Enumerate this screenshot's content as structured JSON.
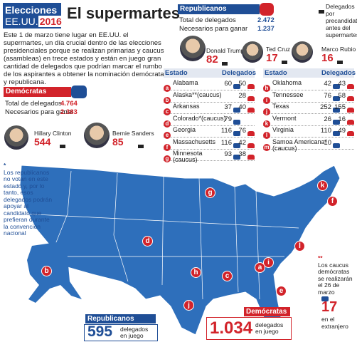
{
  "header": {
    "brand": "Elecciones",
    "country": "EE.UU.",
    "year": "2016",
    "title": "El supermartes"
  },
  "intro": "Este 1 de marzo tiene lugar en EE.UU. el supermartes, un día crucial dentro de las elecciones presidenciales porque se realizan primarias y caucus (asambleas) en trece estados y están en juego gran cantidad de delegados que podrían marcar el rumbo de los aspirantes a obtener la nominación demócrata y republicana.",
  "republicans": {
    "title": "Republicanos",
    "rows": [
      {
        "label": "Total de delegados",
        "value": "2.472"
      },
      {
        "label": "Necesarios para ganar",
        "value": "1.237"
      }
    ],
    "candidates": [
      {
        "name": "Donald Trump",
        "delegates": "82"
      },
      {
        "name": "Ted Cruz",
        "delegates": "17"
      },
      {
        "name": "Marco Rubio",
        "delegates": "16"
      }
    ]
  },
  "flag_note": "Delegados por precandidato antes del supermartes",
  "democrats": {
    "title": "Demócratas",
    "rows": [
      {
        "label": "Total de delegados",
        "value": "4.764"
      },
      {
        "label": "Necesarios para ganar",
        "value": "2.383"
      }
    ],
    "candidates": [
      {
        "name": "Hillary Clinton",
        "delegates": "544"
      },
      {
        "name": "Bernie Sanders",
        "delegates": "85"
      }
    ]
  },
  "states": {
    "headers": [
      "Estado",
      "Delegados"
    ],
    "left": [
      {
        "letter": "a",
        "name": "Alabama",
        "dem": "60",
        "rep": "50"
      },
      {
        "letter": "b",
        "name": "Alaska**(caucus)",
        "rep": "28"
      },
      {
        "letter": "c",
        "name": "Arkansas",
        "dem": "37",
        "rep": "40"
      },
      {
        "letter": "d",
        "name": "Colorado*(caucus)",
        "dem": "79"
      },
      {
        "letter": "e",
        "name": "Georgia",
        "dem": "116",
        "rep": "76"
      },
      {
        "letter": "f",
        "name": "Massachusetts",
        "dem": "116",
        "rep": "42"
      },
      {
        "letter": "g",
        "name": "Minnesota (caucus)",
        "dem": "93",
        "rep": "38"
      }
    ],
    "right": [
      {
        "letter": "h",
        "name": "Oklahoma",
        "dem": "42",
        "rep": "43"
      },
      {
        "letter": "i",
        "name": "Tennessee",
        "dem": "76",
        "rep": "58"
      },
      {
        "letter": "j",
        "name": "Texas",
        "dem": "252",
        "rep": "155"
      },
      {
        "letter": "k",
        "name": "Vermont",
        "dem": "26",
        "rep": "16"
      },
      {
        "letter": "l",
        "name": "Virginia",
        "dem": "110",
        "rep": "49"
      },
      {
        "letter": "m",
        "name": "Samoa Americana*(caucus)",
        "dem": "10"
      }
    ]
  },
  "notes": [
    {
      "mark": "*",
      "text": "Los republicanos no votan en este estado y, por lo tanto, esos delegados podrán apoyar al candidato que prefieran durante la convención nacional"
    },
    {
      "mark": "**",
      "text": "Los caucus demócratas se realizarán el 26 de marzo"
    }
  ],
  "totals": {
    "republicans": {
      "title": "Republicanos",
      "value": "595",
      "label": "delegados en juego"
    },
    "democrats": {
      "title": "Demócratas",
      "value": "1.034",
      "label": "delegados en juego"
    },
    "abroad": {
      "value": "17",
      "label": "en el extranjero"
    }
  }
}
